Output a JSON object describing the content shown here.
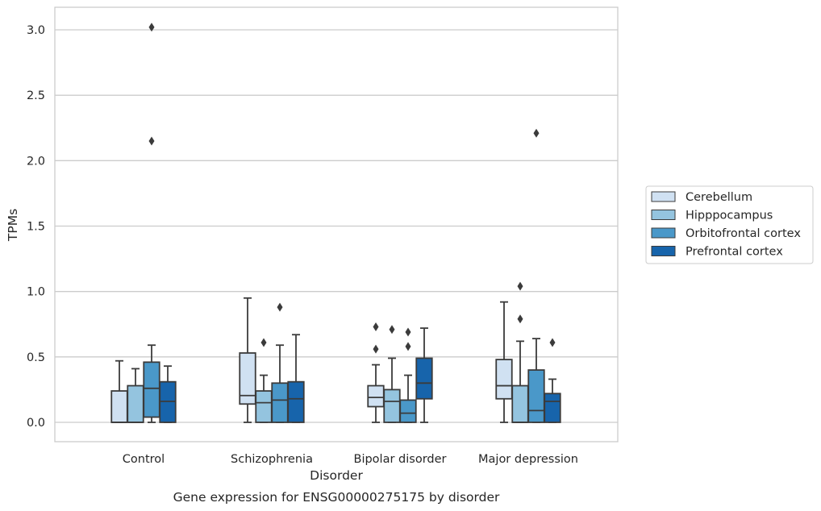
{
  "chart_data": {
    "type": "box",
    "title": "",
    "caption": "Gene expression for ENSG00000275175 by disorder",
    "xlabel": "Disorder",
    "ylabel": "TPMs",
    "ylim": [
      -0.15,
      3.18
    ],
    "yticks": [
      0.0,
      0.5,
      1.0,
      1.5,
      2.0,
      2.5,
      3.0
    ],
    "ytick_labels": [
      "0.0",
      "0.5",
      "1.0",
      "1.5",
      "2.0",
      "2.5",
      "3.0"
    ],
    "grid": "horizontal",
    "legend_position": "right",
    "categories": [
      "Control",
      "Schizophrenia",
      "Bipolar disorder",
      "Major depression"
    ],
    "series": [
      {
        "name": "Cerebellum",
        "color": "#d0e1f2",
        "boxes": [
          {
            "low": 0.0,
            "q1": 0.0,
            "median": 0.0,
            "q3": 0.24,
            "high": 0.47,
            "outliers": []
          },
          {
            "low": 0.0,
            "q1": 0.14,
            "median": 0.205,
            "q3": 0.53,
            "high": 0.95,
            "outliers": []
          },
          {
            "low": 0.0,
            "q1": 0.12,
            "median": 0.19,
            "q3": 0.28,
            "high": 0.44,
            "outliers": [
              0.56,
              0.73
            ]
          },
          {
            "low": 0.0,
            "q1": 0.18,
            "median": 0.28,
            "q3": 0.48,
            "high": 0.92,
            "outliers": []
          }
        ]
      },
      {
        "name": "Hipppocampus",
        "color": "#94c4df",
        "boxes": [
          {
            "low": 0.0,
            "q1": 0.0,
            "median": 0.0,
            "q3": 0.28,
            "high": 0.41,
            "outliers": []
          },
          {
            "low": 0.0,
            "q1": 0.0,
            "median": 0.15,
            "q3": 0.24,
            "high": 0.36,
            "outliers": [
              0.61
            ]
          },
          {
            "low": 0.0,
            "q1": 0.0,
            "median": 0.16,
            "q3": 0.25,
            "high": 0.49,
            "outliers": [
              0.71
            ]
          },
          {
            "low": 0.0,
            "q1": 0.0,
            "median": 0.0,
            "q3": 0.28,
            "high": 0.62,
            "outliers": [
              0.79,
              1.04
            ]
          }
        ]
      },
      {
        "name": "Orbitofrontal cortex",
        "color": "#4a98c9",
        "boxes": [
          {
            "low": 0.0,
            "q1": 0.04,
            "median": 0.26,
            "q3": 0.46,
            "high": 0.59,
            "outliers": [
              2.15,
              3.02
            ]
          },
          {
            "low": 0.0,
            "q1": 0.0,
            "median": 0.17,
            "q3": 0.3,
            "high": 0.59,
            "outliers": [
              0.88
            ]
          },
          {
            "low": 0.0,
            "q1": 0.0,
            "median": 0.07,
            "q3": 0.17,
            "high": 0.36,
            "outliers": [
              0.58,
              0.69
            ]
          },
          {
            "low": 0.0,
            "q1": 0.0,
            "median": 0.09,
            "q3": 0.4,
            "high": 0.64,
            "outliers": [
              2.21
            ]
          }
        ]
      },
      {
        "name": "Prefrontal cortex",
        "color": "#1764ab",
        "boxes": [
          {
            "low": 0.0,
            "q1": 0.0,
            "median": 0.16,
            "q3": 0.31,
            "high": 0.43,
            "outliers": []
          },
          {
            "low": 0.0,
            "q1": 0.0,
            "median": 0.18,
            "q3": 0.31,
            "high": 0.67,
            "outliers": []
          },
          {
            "low": 0.0,
            "q1": 0.18,
            "median": 0.3,
            "q3": 0.49,
            "high": 0.72,
            "outliers": []
          },
          {
            "low": 0.0,
            "q1": 0.0,
            "median": 0.16,
            "q3": 0.22,
            "high": 0.33,
            "outliers": [
              0.61
            ]
          }
        ]
      }
    ]
  }
}
